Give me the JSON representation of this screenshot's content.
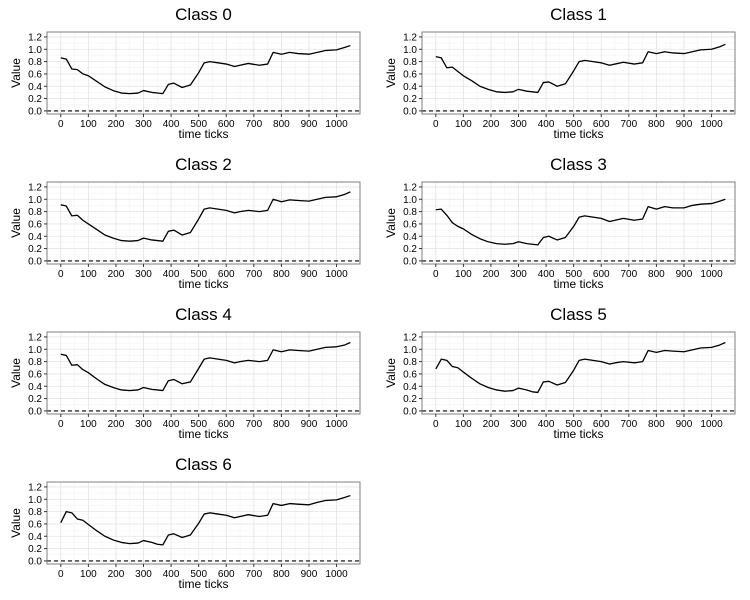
{
  "chart_data": [
    {
      "type": "line",
      "title": "Class 0",
      "xlabel": "time ticks",
      "ylabel": "Value",
      "xlim": [
        -50,
        1085
      ],
      "ylim": [
        -0.05,
        1.28
      ],
      "xticks": [
        0,
        100,
        200,
        300,
        400,
        500,
        600,
        700,
        800,
        900,
        1000
      ],
      "yticks": [
        0.0,
        0.2,
        0.4,
        0.6,
        0.8,
        1.0,
        1.2
      ],
      "hline": 0,
      "grid": true,
      "x": [
        0,
        20,
        40,
        60,
        80,
        100,
        130,
        160,
        190,
        220,
        250,
        280,
        300,
        330,
        350,
        370,
        390,
        410,
        440,
        470,
        500,
        520,
        540,
        570,
        600,
        630,
        650,
        680,
        720,
        750,
        770,
        800,
        830,
        860,
        900,
        930,
        960,
        1000,
        1030,
        1050
      ],
      "y": [
        0.86,
        0.84,
        0.68,
        0.67,
        0.6,
        0.57,
        0.48,
        0.39,
        0.33,
        0.29,
        0.28,
        0.29,
        0.33,
        0.3,
        0.29,
        0.28,
        0.43,
        0.45,
        0.38,
        0.42,
        0.62,
        0.78,
        0.8,
        0.78,
        0.76,
        0.72,
        0.74,
        0.77,
        0.74,
        0.76,
        0.95,
        0.92,
        0.95,
        0.93,
        0.92,
        0.95,
        0.98,
        0.99,
        1.03,
        1.06
      ]
    },
    {
      "type": "line",
      "title": "Class 1",
      "xlabel": "time ticks",
      "ylabel": "Value",
      "xlim": [
        -50,
        1085
      ],
      "ylim": [
        -0.05,
        1.28
      ],
      "xticks": [
        0,
        100,
        200,
        300,
        400,
        500,
        600,
        700,
        800,
        900,
        1000
      ],
      "yticks": [
        0.0,
        0.2,
        0.4,
        0.6,
        0.8,
        1.0,
        1.2
      ],
      "hline": 0,
      "grid": true,
      "x": [
        0,
        20,
        40,
        60,
        80,
        100,
        130,
        160,
        190,
        220,
        250,
        280,
        300,
        330,
        350,
        370,
        390,
        410,
        440,
        470,
        500,
        520,
        540,
        570,
        600,
        630,
        650,
        680,
        720,
        750,
        770,
        800,
        830,
        860,
        900,
        930,
        960,
        1000,
        1030,
        1050
      ],
      "y": [
        0.88,
        0.86,
        0.7,
        0.71,
        0.64,
        0.57,
        0.49,
        0.4,
        0.35,
        0.31,
        0.3,
        0.31,
        0.35,
        0.32,
        0.31,
        0.3,
        0.46,
        0.47,
        0.4,
        0.44,
        0.65,
        0.8,
        0.82,
        0.8,
        0.78,
        0.74,
        0.76,
        0.79,
        0.76,
        0.78,
        0.96,
        0.93,
        0.96,
        0.94,
        0.93,
        0.96,
        0.99,
        1.0,
        1.04,
        1.08
      ]
    },
    {
      "type": "line",
      "title": "Class 2",
      "xlabel": "time ticks",
      "ylabel": "Value",
      "xlim": [
        -50,
        1085
      ],
      "ylim": [
        -0.05,
        1.28
      ],
      "xticks": [
        0,
        100,
        200,
        300,
        400,
        500,
        600,
        700,
        800,
        900,
        1000
      ],
      "yticks": [
        0.0,
        0.2,
        0.4,
        0.6,
        0.8,
        1.0,
        1.2
      ],
      "hline": 0,
      "grid": true,
      "x": [
        0,
        20,
        40,
        60,
        80,
        100,
        130,
        160,
        190,
        220,
        250,
        280,
        300,
        330,
        350,
        370,
        390,
        410,
        440,
        470,
        500,
        520,
        540,
        570,
        600,
        630,
        650,
        680,
        720,
        750,
        770,
        800,
        830,
        860,
        900,
        930,
        960,
        1000,
        1030,
        1050
      ],
      "y": [
        0.91,
        0.89,
        0.73,
        0.74,
        0.66,
        0.6,
        0.51,
        0.42,
        0.37,
        0.33,
        0.32,
        0.33,
        0.37,
        0.34,
        0.33,
        0.32,
        0.48,
        0.5,
        0.42,
        0.46,
        0.68,
        0.84,
        0.86,
        0.84,
        0.82,
        0.78,
        0.8,
        0.82,
        0.8,
        0.82,
        1.0,
        0.96,
        0.99,
        0.98,
        0.97,
        1.0,
        1.03,
        1.04,
        1.08,
        1.12
      ]
    },
    {
      "type": "line",
      "title": "Class 3",
      "xlabel": "time ticks",
      "ylabel": "Value",
      "xlim": [
        -50,
        1085
      ],
      "ylim": [
        -0.05,
        1.28
      ],
      "xticks": [
        0,
        100,
        200,
        300,
        400,
        500,
        600,
        700,
        800,
        900,
        1000
      ],
      "yticks": [
        0.0,
        0.2,
        0.4,
        0.6,
        0.8,
        1.0,
        1.2
      ],
      "hline": 0,
      "grid": true,
      "x": [
        0,
        20,
        40,
        60,
        80,
        100,
        130,
        160,
        190,
        220,
        250,
        280,
        300,
        330,
        350,
        370,
        390,
        410,
        440,
        470,
        500,
        520,
        540,
        570,
        600,
        630,
        650,
        680,
        720,
        750,
        770,
        800,
        830,
        860,
        900,
        930,
        960,
        1000,
        1030,
        1050
      ],
      "y": [
        0.83,
        0.84,
        0.74,
        0.62,
        0.56,
        0.52,
        0.43,
        0.36,
        0.31,
        0.28,
        0.27,
        0.28,
        0.31,
        0.28,
        0.27,
        0.26,
        0.38,
        0.4,
        0.34,
        0.38,
        0.56,
        0.71,
        0.73,
        0.71,
        0.69,
        0.64,
        0.66,
        0.69,
        0.66,
        0.68,
        0.88,
        0.84,
        0.88,
        0.86,
        0.86,
        0.9,
        0.92,
        0.93,
        0.97,
        1.0
      ]
    },
    {
      "type": "line",
      "title": "Class 4",
      "xlabel": "time ticks",
      "ylabel": "Value",
      "xlim": [
        -50,
        1085
      ],
      "ylim": [
        -0.05,
        1.28
      ],
      "xticks": [
        0,
        100,
        200,
        300,
        400,
        500,
        600,
        700,
        800,
        900,
        1000
      ],
      "yticks": [
        0.0,
        0.2,
        0.4,
        0.6,
        0.8,
        1.0,
        1.2
      ],
      "hline": 0,
      "grid": true,
      "x": [
        0,
        20,
        40,
        60,
        80,
        100,
        130,
        160,
        190,
        220,
        250,
        280,
        300,
        330,
        350,
        370,
        390,
        410,
        440,
        470,
        500,
        520,
        540,
        570,
        600,
        630,
        650,
        680,
        720,
        750,
        770,
        800,
        830,
        860,
        900,
        930,
        960,
        1000,
        1030,
        1050
      ],
      "y": [
        0.92,
        0.9,
        0.74,
        0.75,
        0.67,
        0.62,
        0.52,
        0.43,
        0.38,
        0.34,
        0.33,
        0.34,
        0.38,
        0.35,
        0.34,
        0.33,
        0.49,
        0.51,
        0.44,
        0.47,
        0.69,
        0.84,
        0.86,
        0.84,
        0.82,
        0.78,
        0.8,
        0.82,
        0.8,
        0.82,
        0.99,
        0.96,
        0.99,
        0.98,
        0.97,
        1.0,
        1.03,
        1.04,
        1.07,
        1.11
      ]
    },
    {
      "type": "line",
      "title": "Class 5",
      "xlabel": "time ticks",
      "ylabel": "Value",
      "xlim": [
        -50,
        1085
      ],
      "ylim": [
        -0.05,
        1.28
      ],
      "xticks": [
        0,
        100,
        200,
        300,
        400,
        500,
        600,
        700,
        800,
        900,
        1000
      ],
      "yticks": [
        0.0,
        0.2,
        0.4,
        0.6,
        0.8,
        1.0,
        1.2
      ],
      "hline": 0,
      "grid": true,
      "x": [
        0,
        20,
        40,
        60,
        80,
        100,
        130,
        160,
        190,
        220,
        250,
        280,
        300,
        330,
        350,
        370,
        390,
        410,
        440,
        470,
        500,
        520,
        540,
        570,
        600,
        630,
        650,
        680,
        720,
        750,
        770,
        800,
        830,
        860,
        900,
        930,
        960,
        1000,
        1030,
        1050
      ],
      "y": [
        0.68,
        0.84,
        0.82,
        0.72,
        0.7,
        0.63,
        0.53,
        0.44,
        0.38,
        0.34,
        0.32,
        0.33,
        0.37,
        0.34,
        0.31,
        0.3,
        0.47,
        0.48,
        0.42,
        0.46,
        0.66,
        0.82,
        0.84,
        0.82,
        0.8,
        0.76,
        0.78,
        0.8,
        0.78,
        0.8,
        0.98,
        0.95,
        0.98,
        0.97,
        0.96,
        0.99,
        1.02,
        1.03,
        1.07,
        1.11
      ]
    },
    {
      "type": "line",
      "title": "Class 6",
      "xlabel": "time ticks",
      "ylabel": "Value",
      "xlim": [
        -50,
        1085
      ],
      "ylim": [
        -0.05,
        1.28
      ],
      "xticks": [
        0,
        100,
        200,
        300,
        400,
        500,
        600,
        700,
        800,
        900,
        1000
      ],
      "yticks": [
        0.0,
        0.2,
        0.4,
        0.6,
        0.8,
        1.0,
        1.2
      ],
      "hline": 0,
      "grid": true,
      "x": [
        0,
        20,
        40,
        60,
        80,
        100,
        130,
        160,
        190,
        220,
        250,
        280,
        300,
        330,
        350,
        370,
        390,
        410,
        440,
        470,
        500,
        520,
        540,
        570,
        600,
        630,
        650,
        680,
        720,
        750,
        770,
        800,
        830,
        860,
        900,
        930,
        960,
        1000,
        1030,
        1050
      ],
      "y": [
        0.62,
        0.8,
        0.78,
        0.68,
        0.66,
        0.59,
        0.49,
        0.4,
        0.34,
        0.3,
        0.28,
        0.29,
        0.33,
        0.3,
        0.27,
        0.26,
        0.42,
        0.44,
        0.38,
        0.42,
        0.61,
        0.76,
        0.78,
        0.76,
        0.74,
        0.7,
        0.72,
        0.75,
        0.72,
        0.74,
        0.93,
        0.9,
        0.93,
        0.92,
        0.91,
        0.95,
        0.98,
        0.99,
        1.03,
        1.06
      ]
    }
  ],
  "colors": {
    "line": "#000000",
    "panel_bg": "#ffffff",
    "grid_major": "#e4e4e4",
    "grid_minor": "#f2f2f2",
    "border": "#7f7f7f",
    "hline": "#000000"
  }
}
